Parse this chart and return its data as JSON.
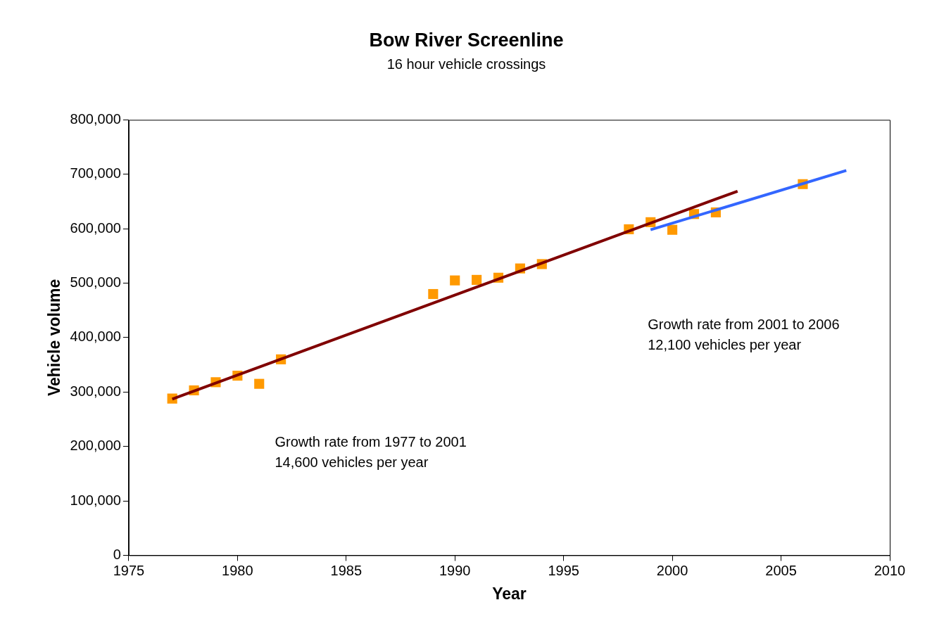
{
  "chart_data": {
    "type": "scatter",
    "title": "Bow River Screenline",
    "subtitle": "16 hour vehicle crossings",
    "xlabel": "Year",
    "ylabel": "Vehicle volume",
    "x": [
      1977,
      1978,
      1979,
      1980,
      1981,
      1982,
      1989,
      1990,
      1991,
      1992,
      1993,
      1994,
      1998,
      1999,
      2000,
      2001,
      2002,
      2006
    ],
    "series": [
      {
        "marker": "square",
        "color": "#ff9900",
        "values": [
          288000,
          303000,
          318000,
          330000,
          315000,
          360000,
          480000,
          505000,
          506000,
          510000,
          527000,
          535000,
          599000,
          612000,
          598000,
          627000,
          630000,
          682000
        ]
      },
      {
        "type": "line",
        "color": "#800000",
        "x": [
          1977,
          2003
        ],
        "values": [
          287000,
          669000
        ]
      },
      {
        "type": "line",
        "color": "#3366ff",
        "x": [
          1999,
          2008
        ],
        "values": [
          598000,
          707000
        ]
      }
    ],
    "xlim": [
      1975,
      2010
    ],
    "xticks": [
      1975,
      1980,
      1985,
      1990,
      1995,
      2000,
      2005,
      2010
    ],
    "ylim": [
      0,
      800000
    ],
    "yticks": [
      0,
      {
        "value": 100000,
        "label": "100,000"
      },
      {
        "value": 200000,
        "label": "200,000"
      },
      {
        "value": 300000,
        "label": "300,000"
      },
      {
        "value": 400000,
        "label": "400,000"
      },
      {
        "value": 500000,
        "label": "500,000"
      },
      {
        "value": 600000,
        "label": "600,000"
      },
      {
        "value": 700000,
        "label": "700,000"
      },
      {
        "value": 800000,
        "label": "800,000"
      }
    ],
    "annotations": [
      "Growth rate from 1977 to 2001\n14,600 vehicles per year",
      "Growth rate from 2001 to 2006\n12,100 vehicles per year"
    ],
    "grid": false,
    "legend": false
  }
}
